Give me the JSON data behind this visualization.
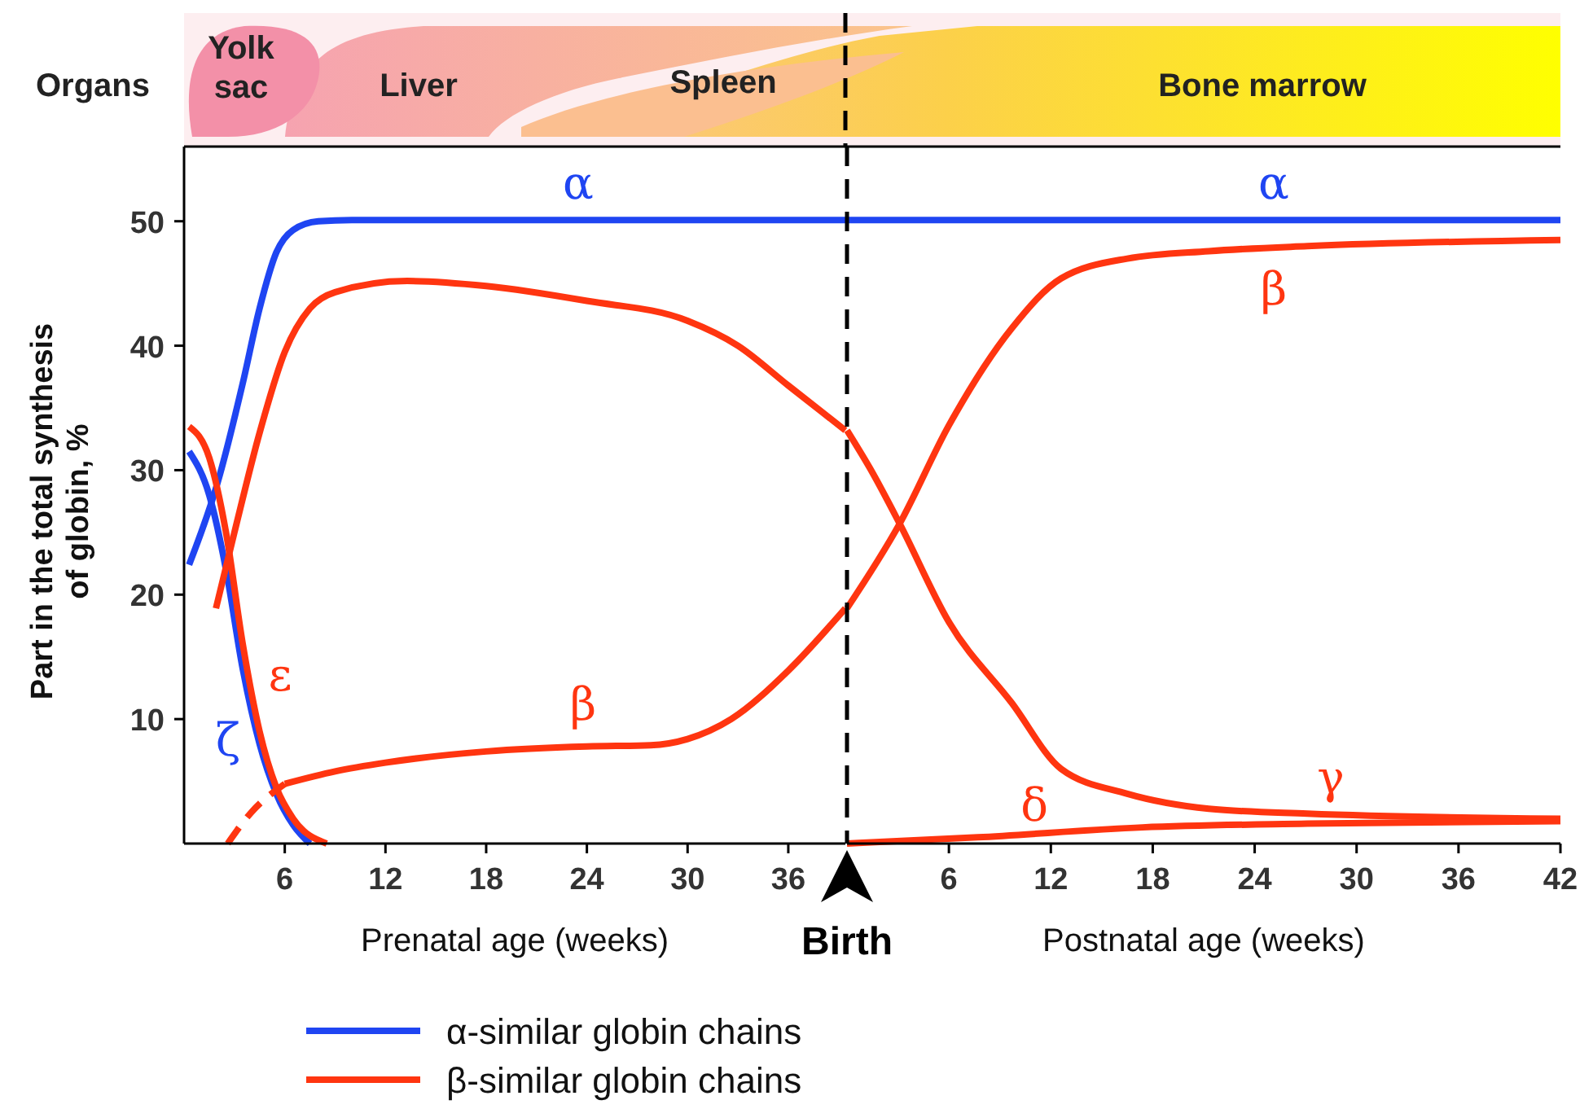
{
  "chart_data": [
    {
      "type": "other",
      "annotations": [
        "Organs",
        "Yolk sac",
        "Liver",
        "Spleen",
        "Bone marrow"
      ]
    },
    {
      "type": "line",
      "xlabel": "Prenatal age (weeks)",
      "ylabel": "Part in the total synthesis of globin, %",
      "xlim": [
        0,
        39.4
      ],
      "xticks": [
        6,
        12,
        18,
        24,
        30,
        36
      ],
      "ylim": [
        0,
        56
      ],
      "yticks": [
        10,
        20,
        30,
        40,
        50
      ],
      "grid": false,
      "legend": "bottom",
      "marker": "none",
      "annotations": [
        "α",
        "ζ",
        "ε",
        "β"
      ],
      "series": [
        {
          "name": "α-similar globin chains",
          "color": "#1f45f2",
          "x": [
            0.3,
            2,
            3.5,
            4.5,
            5.5,
            6.5,
            8,
            10,
            39.4
          ],
          "values": [
            22.4,
            29,
            37,
            43,
            47.5,
            49.3,
            50,
            50.1,
            50.1
          ]
        },
        {
          "color": "#1f45f2",
          "x": [
            0.3,
            1.5,
            2.5,
            3.5,
            4.5,
            5.5,
            6.5,
            7.5
          ],
          "values": [
            31.5,
            28,
            22,
            14,
            8,
            4,
            1.5,
            0
          ]
        },
        {
          "name": "β-similar globin chains",
          "color": "#ff3510",
          "x": [
            0.3,
            1.5,
            2.5,
            3.5,
            4.5,
            5.5,
            6.5,
            8.5
          ],
          "values": [
            33.5,
            31,
            25,
            16,
            9,
            4.5,
            2,
            0
          ]
        },
        {
          "color": "#ff3510",
          "x": [
            1.9,
            3,
            4.5,
            6,
            7.5,
            9,
            13.3,
            18,
            24,
            30,
            33,
            36,
            39.4
          ],
          "values": [
            18.9,
            25,
            33,
            39.5,
            43,
            44.3,
            45.2,
            44.8,
            43.6,
            42,
            40,
            36.8,
            33.2
          ]
        },
        {
          "color": "#ff3510",
          "line_style": "dashed",
          "x": [
            2.6,
            4,
            6
          ],
          "values": [
            0,
            2.5,
            4.8
          ]
        },
        {
          "color": "#ff3510",
          "x": [
            6,
            9,
            12,
            18,
            24,
            27.8,
            30,
            32.6,
            36,
            39.4
          ],
          "values": [
            4.8,
            5.8,
            6.5,
            7.4,
            7.8,
            7.9,
            8.4,
            10,
            13.9,
            18.9
          ]
        }
      ]
    },
    {
      "type": "line",
      "xlabel": "Postnatal age (weeks)",
      "xlim": [
        0,
        42
      ],
      "xticks": [
        6,
        12,
        18,
        24,
        30,
        36,
        42
      ],
      "ylim": [
        0,
        56
      ],
      "tick_labels": "x",
      "grid": false,
      "marker": "none",
      "ref_lines": [
        {
          "axis": "x",
          "value": 0,
          "label": "Birth",
          "color": "#000000",
          "line_style": "dashed"
        }
      ],
      "annotations": [
        "α",
        "β",
        "γ",
        "δ"
      ],
      "series": [
        {
          "color": "#1f45f2",
          "x": [
            0,
            42
          ],
          "values": [
            50.1,
            50.1
          ]
        },
        {
          "color": "#ff3510",
          "x": [
            0,
            1.5,
            3.1,
            6,
            9.7,
            12.6,
            16.5,
            21.3,
            27.1,
            42
          ],
          "values": [
            33.2,
            29.8,
            25.7,
            17.8,
            11.3,
            6,
            4,
            2.8,
            2.4,
            2
          ]
        },
        {
          "color": "#ff3510",
          "x": [
            0,
            3.1,
            6,
            9.7,
            12.6,
            16.5,
            21.3,
            27.1,
            42
          ],
          "values": [
            18.9,
            25.7,
            33.6,
            41.4,
            45.4,
            47,
            47.6,
            48,
            48.5
          ]
        },
        {
          "color": "#ff3510",
          "x": [
            0,
            7.7,
            17.4,
            27.1,
            42
          ],
          "values": [
            0,
            0.5,
            1.3,
            1.6,
            1.8
          ]
        }
      ]
    }
  ]
}
